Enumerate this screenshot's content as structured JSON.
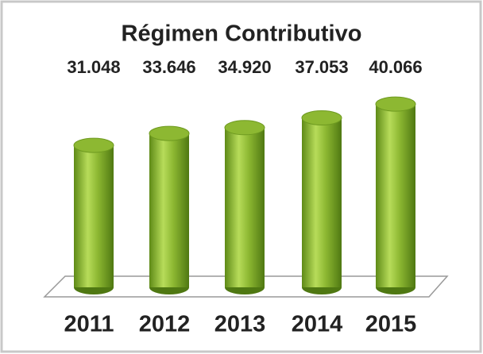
{
  "chart_data": {
    "type": "bar",
    "title": "Régimen Contributivo",
    "categories": [
      "2011",
      "2012",
      "2013",
      "2014",
      "2015"
    ],
    "values": [
      31048,
      33646,
      34920,
      37053,
      40066
    ],
    "value_labels": [
      "31.048",
      "33.646",
      "34.920",
      "37.053",
      "40.066"
    ],
    "color": "#8db832",
    "ylim": [
      0,
      42000
    ]
  }
}
